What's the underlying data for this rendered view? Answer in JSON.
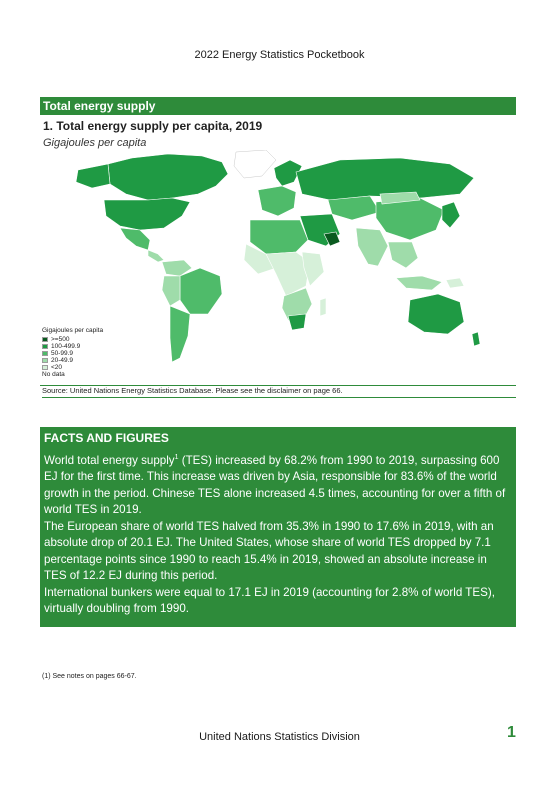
{
  "header": {
    "title": "2022 Energy Statistics Pocketbook"
  },
  "section": {
    "title": "Total energy supply"
  },
  "figure": {
    "title": "1. Total energy supply per capita, 2019",
    "subtitle": "Gigajoules per capita",
    "legend": {
      "title": "Gigajoules per capita",
      "items": [
        {
          "label": ">=500",
          "color": "#0a5a20"
        },
        {
          "label": "100-499.9",
          "color": "#1f9a44"
        },
        {
          "label": "50-99.9",
          "color": "#4fbb6a"
        },
        {
          "label": "20-49.9",
          "color": "#9fdcaa"
        },
        {
          "label": "<20",
          "color": "#d6f0d9"
        },
        {
          "label": "No data",
          "color": "#ffffff"
        }
      ]
    },
    "source": "Source: United Nations Energy Statistics Database. Please see the disclaimer on page 66."
  },
  "facts": {
    "heading": "FACTS AND FIGURES",
    "p1_pre": "World total energy supply",
    "p1_sup": "1",
    "p1_post": " (TES) increased by 68.2% from 1990 to 2019, surpassing 600 EJ for the first time.  This increase was driven by Asia, responsible for 83.6% of the world growth in the period. Chinese TES alone increased 4.5 times, accounting for over a fifth of world TES in 2019.",
    "p2": "The European share of world TES halved from 35.3% in 1990 to 17.6% in 2019, with an absolute drop of 20.1 EJ. The United States, whose share of world TES dropped by 7.1 percentage points since 1990 to reach 15.4% in 2019, showed an absolute increase in TES of 12.2 EJ during this period.",
    "p3": "International bunkers were equal to 17.1 EJ in 2019 (accounting for 2.8% of world TES), virtually doubling from 1990."
  },
  "footnote": "(1) See notes on pages 66-67.",
  "footer": {
    "org": "United Nations Statistics Division",
    "page": "1"
  }
}
